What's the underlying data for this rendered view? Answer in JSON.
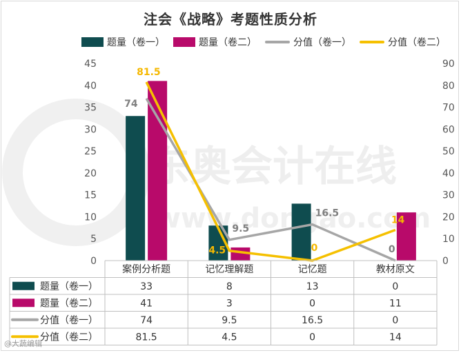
{
  "chart_data": {
    "type": "bar",
    "title": "注会《战略》考题性质分析",
    "categories": [
      "案例分析题",
      "记忆理解题",
      "记忆题",
      "教材原文"
    ],
    "left_axis": {
      "ylim": [
        0,
        45
      ],
      "ticks": [
        "0",
        "5",
        "10",
        "15",
        "20",
        "25",
        "30",
        "35",
        "40",
        "45"
      ]
    },
    "right_axis": {
      "ylim": [
        0,
        90
      ],
      "ticks": [
        "0",
        "10",
        "20",
        "30",
        "40",
        "50",
        "60",
        "70",
        "80",
        "90"
      ]
    },
    "series": [
      {
        "name": "题量（卷一）",
        "kind": "bar",
        "axis": "left",
        "color": "#0f4c4f",
        "values": [
          33,
          8,
          13,
          0
        ],
        "display": [
          "33",
          "8",
          "13",
          "0"
        ]
      },
      {
        "name": "题量（卷二）",
        "kind": "bar",
        "axis": "left",
        "color": "#b80a6a",
        "values": [
          41,
          3,
          0,
          11
        ],
        "display": [
          "41",
          "3",
          "0",
          "11"
        ]
      },
      {
        "name": "分值（卷一）",
        "kind": "line",
        "axis": "right",
        "color": "#a6a6a6",
        "values": [
          74,
          9.5,
          16.5,
          0
        ],
        "display": [
          "74",
          "9.5",
          "16.5",
          "0"
        ],
        "label_color": "#7f7f7f"
      },
      {
        "name": "分值（卷二）",
        "kind": "line",
        "axis": "right",
        "color": "#f5c000",
        "values": [
          81.5,
          4.5,
          0,
          14
        ],
        "display": [
          "81.5",
          "4.5",
          "0",
          "14"
        ],
        "label_color": "#f5b800"
      }
    ],
    "legend_position": "top",
    "grid": false,
    "data_table": true
  },
  "watermark": {
    "text": "东奥会计在线",
    "url": "www.dongao.com"
  },
  "corner_mark": "@大蔬编辑"
}
